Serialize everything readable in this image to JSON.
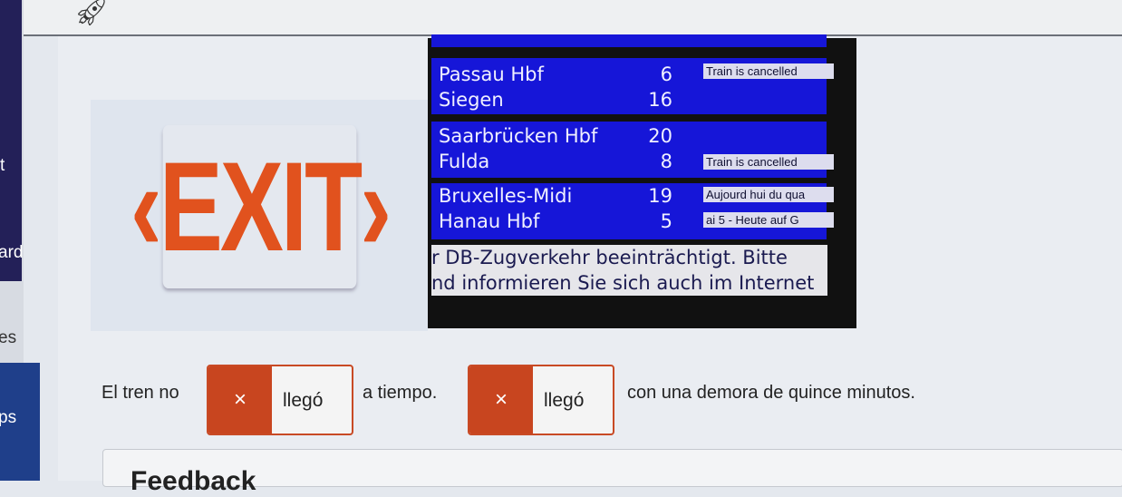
{
  "sidebar": {
    "items": [
      {
        "label": "t"
      },
      {
        "label": "ard"
      },
      {
        "label": "es"
      },
      {
        "label": "ps"
      }
    ]
  },
  "header": {
    "icon": "rocket-icon"
  },
  "exit_image": {
    "sign_text": "‹EXIT›"
  },
  "board": {
    "rows": [
      {
        "dest": "Passau Hbf",
        "num": "6",
        "note": "Train is cancelled"
      },
      {
        "dest": "Siegen",
        "num": "16",
        "note": ""
      },
      {
        "dest": "Saarbrücken Hbf",
        "num": "20",
        "note": ""
      },
      {
        "dest": "Fulda",
        "num": "8",
        "note": "Train is cancelled"
      },
      {
        "dest": "Bruxelles-Midi",
        "num": "19",
        "note": "Aujourd hui du qua"
      },
      {
        "dest": "Hanau Hbf",
        "num": "5",
        "note": "ai 5 - Heute auf G"
      }
    ],
    "ticker": [
      "r DB-Zugverkehr beeinträchtigt. Bitte",
      "nd informieren Sie sich auch im Internet"
    ]
  },
  "exercise": {
    "part1": "El tren no",
    "answer1": "llegó",
    "part2": "a tiempo.",
    "answer2": "llegó",
    "part3": "con una demora de quince minutos.",
    "wrong_mark": "×"
  },
  "feedback": {
    "title": "Feedback"
  },
  "colors": {
    "wrong": "#c8451f",
    "board_blue": "#1616d8",
    "sidebar": "#232058"
  }
}
